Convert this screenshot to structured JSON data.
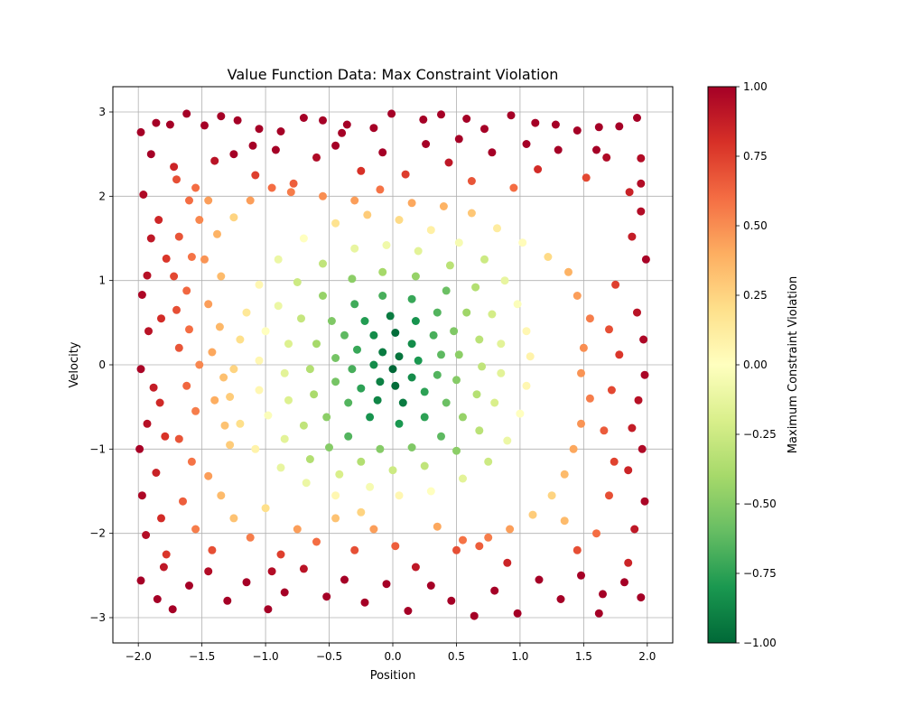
{
  "chart_data": {
    "type": "scatter",
    "title": "Value Function Data: Max Constraint Violation",
    "xlabel": "Position",
    "ylabel": "Velocity",
    "xlim": [
      -2.2,
      2.2
    ],
    "ylim": [
      -3.3,
      3.3
    ],
    "xticks": [
      -2.0,
      -1.5,
      -1.0,
      -0.5,
      0.0,
      0.5,
      1.0,
      1.5,
      2.0
    ],
    "xtick_labels": [
      "−2.0",
      "−1.5",
      "−1.0",
      "−0.5",
      "0.0",
      "0.5",
      "1.0",
      "1.5",
      "2.0"
    ],
    "yticks": [
      -3,
      -2,
      -1,
      0,
      1,
      2,
      3
    ],
    "ytick_labels": [
      "−3",
      "−2",
      "−1",
      "0",
      "1",
      "2",
      "3"
    ],
    "grid": true,
    "colormap": "RdYlGn_r",
    "colorbar": {
      "label": "Maximum Constraint Violation",
      "range": [
        -1.0,
        1.0
      ],
      "ticks": [
        -1.0,
        -0.75,
        -0.5,
        -0.25,
        0.0,
        0.25,
        0.5,
        0.75,
        1.0
      ],
      "tick_labels": [
        "−1.00",
        "−0.75",
        "−0.50",
        "−0.25",
        "0.00",
        "0.25",
        "0.50",
        "0.75",
        "1.00"
      ]
    },
    "colormap_stops": [
      "#006837",
      "#1a9850",
      "#66bd63",
      "#a6d96a",
      "#d9ef8b",
      "#ffffbf",
      "#fee08b",
      "#fdae61",
      "#f46d43",
      "#d73027",
      "#a50026"
    ],
    "points": [
      [
        -1.98,
        2.76
      ],
      [
        -1.86,
        2.87
      ],
      [
        -1.75,
        2.85
      ],
      [
        -1.62,
        2.98
      ],
      [
        -1.48,
        2.84
      ],
      [
        -1.35,
        2.95
      ],
      [
        -1.22,
        2.9
      ],
      [
        -1.05,
        2.8
      ],
      [
        -0.88,
        2.77
      ],
      [
        -0.7,
        2.93
      ],
      [
        -0.55,
        2.9
      ],
      [
        -0.36,
        2.85
      ],
      [
        -0.15,
        2.81
      ],
      [
        -0.01,
        2.98
      ],
      [
        0.24,
        2.91
      ],
      [
        0.38,
        2.97
      ],
      [
        0.58,
        2.92
      ],
      [
        0.72,
        2.8
      ],
      [
        0.93,
        2.96
      ],
      [
        1.12,
        2.87
      ],
      [
        1.28,
        2.85
      ],
      [
        1.45,
        2.78
      ],
      [
        1.62,
        2.82
      ],
      [
        1.78,
        2.83
      ],
      [
        1.92,
        2.93
      ],
      [
        -1.72,
        2.35
      ],
      [
        -1.55,
        2.1
      ],
      [
        -1.4,
        2.42
      ],
      [
        -1.25,
        2.5
      ],
      [
        -1.08,
        2.25
      ],
      [
        -0.92,
        2.55
      ],
      [
        -0.78,
        2.15
      ],
      [
        -0.6,
        2.46
      ],
      [
        -0.45,
        2.6
      ],
      [
        -0.25,
        2.3
      ],
      [
        -0.08,
        2.52
      ],
      [
        0.1,
        2.26
      ],
      [
        0.26,
        2.62
      ],
      [
        0.44,
        2.4
      ],
      [
        0.62,
        2.18
      ],
      [
        0.78,
        2.52
      ],
      [
        0.95,
        2.1
      ],
      [
        1.14,
        2.32
      ],
      [
        1.3,
        2.55
      ],
      [
        1.52,
        2.22
      ],
      [
        1.68,
        2.46
      ],
      [
        1.86,
        2.05
      ],
      [
        1.95,
        2.15
      ],
      [
        -1.96,
        2.02
      ],
      [
        -1.84,
        1.72
      ],
      [
        -1.9,
        1.5
      ],
      [
        -1.78,
        1.26
      ],
      [
        -1.93,
        1.06
      ],
      [
        -1.97,
        0.83
      ],
      [
        -1.82,
        0.55
      ],
      [
        -1.92,
        0.4
      ],
      [
        -1.98,
        -0.05
      ],
      [
        -1.88,
        -0.27
      ],
      [
        -1.83,
        -0.45
      ],
      [
        -1.93,
        -0.7
      ],
      [
        -1.79,
        -0.85
      ],
      [
        -1.99,
        -1.0
      ],
      [
        -1.86,
        -1.28
      ],
      [
        -1.97,
        -1.55
      ],
      [
        -1.82,
        -1.82
      ],
      [
        -1.94,
        -2.02
      ],
      [
        -1.78,
        -2.25
      ],
      [
        -1.98,
        -2.56
      ],
      [
        -1.85,
        -2.78
      ],
      [
        -1.73,
        -2.9
      ],
      [
        -1.6,
        -2.62
      ],
      [
        -1.45,
        -2.45
      ],
      [
        -1.3,
        -2.8
      ],
      [
        -1.15,
        -2.58
      ],
      [
        -0.98,
        -2.9
      ],
      [
        -0.85,
        -2.7
      ],
      [
        -0.7,
        -2.42
      ],
      [
        -0.52,
        -2.75
      ],
      [
        -0.38,
        -2.55
      ],
      [
        -0.22,
        -2.82
      ],
      [
        -0.05,
        -2.6
      ],
      [
        0.12,
        -2.92
      ],
      [
        0.3,
        -2.62
      ],
      [
        0.46,
        -2.8
      ],
      [
        0.64,
        -2.98
      ],
      [
        0.8,
        -2.68
      ],
      [
        0.98,
        -2.95
      ],
      [
        1.15,
        -2.55
      ],
      [
        1.32,
        -2.78
      ],
      [
        1.48,
        -2.5
      ],
      [
        1.65,
        -2.72
      ],
      [
        1.82,
        -2.58
      ],
      [
        1.95,
        -2.76
      ],
      [
        1.62,
        -2.95
      ],
      [
        1.98,
        -0.12
      ],
      [
        1.93,
        -0.42
      ],
      [
        1.88,
        -0.75
      ],
      [
        1.96,
        -1.0
      ],
      [
        1.85,
        -1.25
      ],
      [
        1.98,
        -1.62
      ],
      [
        1.9,
        -1.95
      ],
      [
        1.97,
        0.3
      ],
      [
        1.92,
        0.62
      ],
      [
        1.99,
        1.25
      ],
      [
        1.88,
        1.52
      ],
      [
        1.95,
        1.82
      ],
      [
        1.75,
        0.95
      ],
      [
        1.7,
        0.42
      ],
      [
        1.78,
        0.12
      ],
      [
        1.72,
        -0.3
      ],
      [
        1.66,
        -0.78
      ],
      [
        1.74,
        -1.15
      ],
      [
        1.7,
        -1.55
      ],
      [
        1.6,
        -2.0
      ],
      [
        1.45,
        -2.2
      ],
      [
        1.35,
        -1.85
      ],
      [
        -1.65,
        -1.62
      ],
      [
        -1.55,
        -1.95
      ],
      [
        -1.42,
        -2.2
      ],
      [
        -1.35,
        -1.55
      ],
      [
        -1.25,
        -1.82
      ],
      [
        -1.12,
        -2.05
      ],
      [
        -1.0,
        -1.7
      ],
      [
        -0.88,
        -2.25
      ],
      [
        -0.75,
        -1.95
      ],
      [
        -0.6,
        -2.1
      ],
      [
        -0.45,
        -1.82
      ],
      [
        -0.3,
        -2.2
      ],
      [
        -0.15,
        -1.95
      ],
      [
        0.02,
        -2.15
      ],
      [
        0.18,
        -2.4
      ],
      [
        0.35,
        -1.92
      ],
      [
        0.5,
        -2.2
      ],
      [
        0.68,
        -2.15
      ],
      [
        -1.7,
        2.2
      ],
      [
        -1.6,
        1.95
      ],
      [
        -1.52,
        1.72
      ],
      [
        -1.68,
        1.52
      ],
      [
        -1.58,
        1.28
      ],
      [
        -1.72,
        1.05
      ],
      [
        -1.62,
        0.88
      ],
      [
        -1.7,
        0.65
      ],
      [
        -1.6,
        0.42
      ],
      [
        -1.68,
        0.2
      ],
      [
        -1.52,
        0.0
      ],
      [
        -1.62,
        -0.25
      ],
      [
        -1.55,
        -0.55
      ],
      [
        -1.68,
        -0.88
      ],
      [
        -1.58,
        -1.15
      ],
      [
        -1.45,
        -1.32
      ],
      [
        -1.45,
        1.95
      ],
      [
        -1.38,
        1.55
      ],
      [
        -1.48,
        1.25
      ],
      [
        -1.35,
        1.05
      ],
      [
        -1.45,
        0.72
      ],
      [
        -1.36,
        0.45
      ],
      [
        -1.42,
        0.15
      ],
      [
        -1.33,
        -0.15
      ],
      [
        -1.4,
        -0.42
      ],
      [
        -1.32,
        -0.72
      ],
      [
        -1.28,
        -0.95
      ],
      [
        -1.25,
        1.75
      ],
      [
        -1.12,
        1.95
      ],
      [
        -0.95,
        2.1
      ],
      [
        -0.8,
        2.05
      ],
      [
        -0.55,
        2.0
      ],
      [
        -0.3,
        1.95
      ],
      [
        -0.1,
        2.08
      ],
      [
        0.15,
        1.92
      ],
      [
        0.4,
        1.88
      ],
      [
        0.62,
        1.8
      ],
      [
        0.82,
        1.62
      ],
      [
        1.02,
        1.45
      ],
      [
        1.22,
        1.28
      ],
      [
        1.38,
        1.1
      ],
      [
        1.45,
        0.82
      ],
      [
        1.55,
        0.55
      ],
      [
        1.5,
        0.2
      ],
      [
        1.48,
        -0.1
      ],
      [
        1.55,
        -0.4
      ],
      [
        1.48,
        -0.7
      ],
      [
        1.42,
        -1.0
      ],
      [
        1.35,
        -1.3
      ],
      [
        1.25,
        -1.55
      ],
      [
        1.1,
        -1.78
      ],
      [
        0.92,
        -1.95
      ],
      [
        0.75,
        -2.05
      ],
      [
        0.55,
        -2.08
      ],
      [
        -0.25,
        -1.75
      ],
      [
        -0.45,
        -1.55
      ],
      [
        -0.68,
        -1.4
      ],
      [
        -0.88,
        -1.22
      ],
      [
        -1.08,
        -1.0
      ],
      [
        -1.2,
        -0.7
      ],
      [
        -1.28,
        -0.38
      ],
      [
        -1.25,
        -0.05
      ],
      [
        -1.2,
        0.3
      ],
      [
        -1.15,
        0.62
      ],
      [
        -1.05,
        0.95
      ],
      [
        -0.9,
        1.25
      ],
      [
        -0.7,
        1.5
      ],
      [
        -0.45,
        1.68
      ],
      [
        -0.2,
        1.78
      ],
      [
        0.05,
        1.72
      ],
      [
        0.3,
        1.6
      ],
      [
        0.52,
        1.45
      ],
      [
        0.72,
        1.25
      ],
      [
        0.88,
        1.0
      ],
      [
        0.98,
        0.72
      ],
      [
        1.05,
        0.4
      ],
      [
        1.08,
        0.1
      ],
      [
        1.05,
        -0.25
      ],
      [
        1.0,
        -0.58
      ],
      [
        0.9,
        -0.9
      ],
      [
        0.75,
        -1.15
      ],
      [
        0.55,
        -1.35
      ],
      [
        0.3,
        -1.5
      ],
      [
        0.05,
        -1.55
      ],
      [
        -0.18,
        -1.45
      ],
      [
        -0.42,
        -1.3
      ],
      [
        -0.65,
        -1.12
      ],
      [
        -0.85,
        -0.88
      ],
      [
        -0.98,
        -0.6
      ],
      [
        -1.05,
        -0.3
      ],
      [
        -1.05,
        0.05
      ],
      [
        -1.0,
        0.4
      ],
      [
        -0.9,
        0.7
      ],
      [
        -0.75,
        0.98
      ],
      [
        -0.55,
        1.2
      ],
      [
        -0.3,
        1.38
      ],
      [
        -0.05,
        1.42
      ],
      [
        0.2,
        1.35
      ],
      [
        0.45,
        1.18
      ],
      [
        0.65,
        0.92
      ],
      [
        0.78,
        0.6
      ],
      [
        0.85,
        0.25
      ],
      [
        0.85,
        -0.1
      ],
      [
        0.8,
        -0.45
      ],
      [
        0.68,
        -0.78
      ],
      [
        0.5,
        -1.02
      ],
      [
        0.25,
        -1.2
      ],
      [
        0.0,
        -1.25
      ],
      [
        -0.25,
        -1.15
      ],
      [
        -0.5,
        -0.98
      ],
      [
        -0.7,
        -0.72
      ],
      [
        -0.82,
        -0.42
      ],
      [
        -0.85,
        -0.1
      ],
      [
        -0.82,
        0.25
      ],
      [
        -0.72,
        0.55
      ],
      [
        -0.55,
        0.82
      ],
      [
        -0.32,
        1.02
      ],
      [
        -0.08,
        1.1
      ],
      [
        0.18,
        1.05
      ],
      [
        0.42,
        0.88
      ],
      [
        0.58,
        0.62
      ],
      [
        0.68,
        0.3
      ],
      [
        0.7,
        -0.02
      ],
      [
        0.66,
        -0.35
      ],
      [
        0.55,
        -0.62
      ],
      [
        0.38,
        -0.85
      ],
      [
        0.15,
        -0.98
      ],
      [
        -0.1,
        -1.0
      ],
      [
        -0.35,
        -0.85
      ],
      [
        -0.52,
        -0.62
      ],
      [
        -0.62,
        -0.35
      ],
      [
        -0.65,
        -0.05
      ],
      [
        -0.6,
        0.25
      ],
      [
        -0.48,
        0.52
      ],
      [
        -0.3,
        0.72
      ],
      [
        -0.08,
        0.82
      ],
      [
        0.15,
        0.78
      ],
      [
        0.35,
        0.62
      ],
      [
        0.48,
        0.4
      ],
      [
        0.52,
        0.12
      ],
      [
        0.5,
        -0.18
      ],
      [
        0.42,
        -0.45
      ],
      [
        0.25,
        -0.62
      ],
      [
        0.05,
        -0.7
      ],
      [
        -0.18,
        -0.62
      ],
      [
        -0.35,
        -0.45
      ],
      [
        -0.45,
        -0.2
      ],
      [
        -0.45,
        0.08
      ],
      [
        -0.38,
        0.35
      ],
      [
        -0.22,
        0.52
      ],
      [
        -0.02,
        0.58
      ],
      [
        0.18,
        0.52
      ],
      [
        0.32,
        0.35
      ],
      [
        0.38,
        0.12
      ],
      [
        0.35,
        -0.12
      ],
      [
        0.25,
        -0.32
      ],
      [
        0.08,
        -0.45
      ],
      [
        -0.12,
        -0.42
      ],
      [
        -0.25,
        -0.28
      ],
      [
        -0.32,
        -0.05
      ],
      [
        -0.28,
        0.18
      ],
      [
        -0.15,
        0.35
      ],
      [
        0.02,
        0.38
      ],
      [
        0.15,
        0.25
      ],
      [
        0.2,
        0.05
      ],
      [
        0.15,
        -0.15
      ],
      [
        0.02,
        -0.25
      ],
      [
        -0.1,
        -0.2
      ],
      [
        -0.15,
        0.0
      ],
      [
        -0.08,
        0.15
      ],
      [
        0.05,
        0.1
      ],
      [
        0.0,
        -0.05
      ],
      [
        -1.1,
        2.6
      ],
      [
        -0.4,
        2.75
      ],
      [
        0.52,
        2.68
      ],
      [
        1.05,
        2.62
      ],
      [
        1.6,
        2.55
      ],
      [
        -1.9,
        2.5
      ],
      [
        1.95,
        2.45
      ],
      [
        -1.8,
        -2.4
      ],
      [
        1.85,
        -2.35
      ],
      [
        -0.95,
        -2.45
      ],
      [
        0.9,
        -2.35
      ]
    ]
  }
}
